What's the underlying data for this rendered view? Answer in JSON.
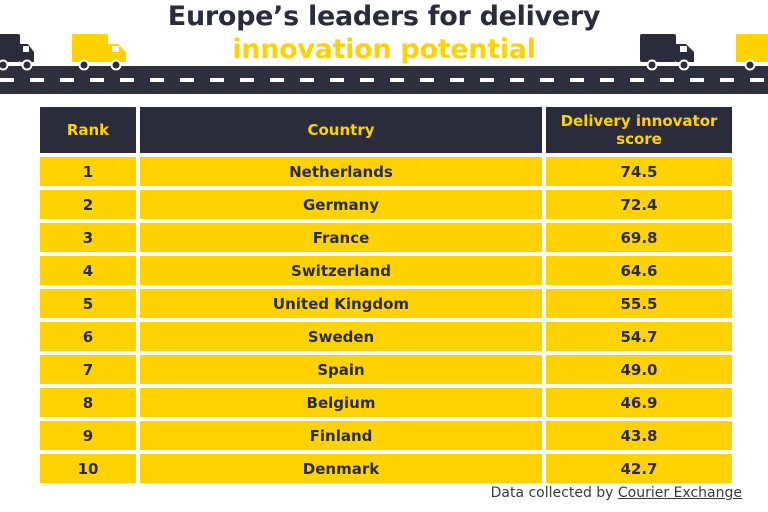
{
  "title": {
    "line1": "Europe’s leaders for delivery",
    "line2": "innovation potential"
  },
  "colors": {
    "navy": "#2b2c3b",
    "yellow": "#ffd200",
    "road": "#2e2f3d"
  },
  "icons": [
    "truck-icon"
  ],
  "table": {
    "headers": {
      "rank": "Rank",
      "country": "Country",
      "score": "Delivery innovator score"
    },
    "rows": [
      {
        "rank": "1",
        "country": "Netherlands",
        "score": "74.5"
      },
      {
        "rank": "2",
        "country": "Germany",
        "score": "72.4"
      },
      {
        "rank": "3",
        "country": "France",
        "score": "69.8"
      },
      {
        "rank": "4",
        "country": "Switzerland",
        "score": "64.6"
      },
      {
        "rank": "5",
        "country": "United Kingdom",
        "score": "55.5"
      },
      {
        "rank": "6",
        "country": "Sweden",
        "score": "54.7"
      },
      {
        "rank": "7",
        "country": "Spain",
        "score": "49.0"
      },
      {
        "rank": "8",
        "country": "Belgium",
        "score": "46.9"
      },
      {
        "rank": "9",
        "country": "Finland",
        "score": "43.8"
      },
      {
        "rank": "10",
        "country": "Denmark",
        "score": "42.7"
      }
    ]
  },
  "source": {
    "prefix": "Data collected by",
    "link": "Courier Exchange"
  },
  "chart_data": {
    "type": "table",
    "title": "Europe’s leaders for delivery innovation potential",
    "columns": [
      "Rank",
      "Country",
      "Delivery innovator score"
    ],
    "rows": [
      [
        1,
        "Netherlands",
        74.5
      ],
      [
        2,
        "Germany",
        72.4
      ],
      [
        3,
        "France",
        69.8
      ],
      [
        4,
        "Switzerland",
        64.6
      ],
      [
        5,
        "United Kingdom",
        55.5
      ],
      [
        6,
        "Sweden",
        54.7
      ],
      [
        7,
        "Spain",
        49.0
      ],
      [
        8,
        "Belgium",
        46.9
      ],
      [
        9,
        "Finland",
        43.8
      ],
      [
        10,
        "Denmark",
        42.7
      ]
    ]
  }
}
